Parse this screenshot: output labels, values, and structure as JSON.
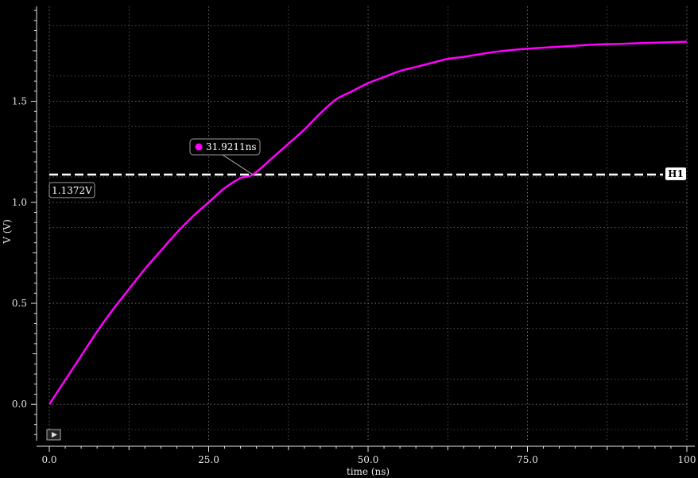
{
  "chart_data": {
    "type": "line",
    "xlabel": "time (ns)",
    "ylabel": "V (V)",
    "xlim": [
      0,
      100
    ],
    "ylim": [
      -0.18,
      1.97
    ],
    "x_ticks": [
      {
        "value": 0,
        "label": "0.0"
      },
      {
        "value": 25,
        "label": "25.0"
      },
      {
        "value": 50,
        "label": "50.0"
      },
      {
        "value": 75,
        "label": "75.0"
      },
      {
        "value": 100,
        "label": "100"
      }
    ],
    "y_ticks": [
      {
        "value": 0,
        "label": "0.0"
      },
      {
        "value": 0.5,
        "label": "0.5"
      },
      {
        "value": 1.0,
        "label": "1.0"
      },
      {
        "value": 1.5,
        "label": "1.5"
      }
    ],
    "grid": true,
    "series": [
      {
        "color": "#ff00ff",
        "x": [
          0,
          2.5,
          5,
          7.5,
          10,
          12.5,
          15,
          17.5,
          20,
          22.5,
          25,
          27.5,
          30,
          31.92,
          35,
          37.5,
          40,
          42.5,
          45,
          47.5,
          50,
          52.5,
          55,
          57.5,
          60,
          62.5,
          65,
          70,
          75,
          80,
          85,
          90,
          95,
          100
        ],
        "y": [
          0.0,
          0.12,
          0.24,
          0.36,
          0.47,
          0.57,
          0.67,
          0.76,
          0.85,
          0.93,
          1.0,
          1.07,
          1.12,
          1.1372,
          1.22,
          1.29,
          1.36,
          1.44,
          1.51,
          1.55,
          1.59,
          1.62,
          1.65,
          1.67,
          1.69,
          1.71,
          1.72,
          1.745,
          1.76,
          1.77,
          1.78,
          1.785,
          1.79,
          1.795
        ]
      }
    ],
    "horizontal_marker": {
      "name": "H1",
      "value": 1.1372,
      "label": "1.1372V",
      "color": "#ffffff"
    },
    "crossing_marker": {
      "x": 31.9211,
      "y": 1.1372,
      "label": "31.9211ns",
      "color": "#ff00ff"
    },
    "colors": {
      "background": "#000000",
      "grid": "#7a7a7a",
      "axis": "#e6e6e6",
      "trace": "#ff00ff"
    }
  }
}
